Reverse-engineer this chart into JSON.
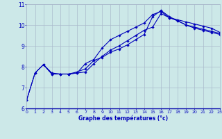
{
  "xlabel": "Graphe des températures (°c)",
  "background_color": "#cce8e8",
  "grid_color": "#aabbcc",
  "line_color": "#0000bb",
  "xlim": [
    0,
    23
  ],
  "ylim": [
    6,
    11
  ],
  "xticks": [
    0,
    1,
    2,
    3,
    4,
    5,
    6,
    7,
    8,
    9,
    10,
    11,
    12,
    13,
    14,
    15,
    16,
    17,
    18,
    19,
    20,
    21,
    22,
    23
  ],
  "yticks": [
    6,
    7,
    8,
    9,
    10,
    11
  ],
  "line1_x": [
    0,
    1,
    2,
    3,
    4,
    5,
    6,
    7,
    8,
    9,
    10,
    11,
    12,
    13,
    14,
    15,
    16,
    17,
    18,
    19,
    20,
    21,
    22,
    23
  ],
  "line1_y": [
    6.4,
    7.7,
    8.1,
    7.7,
    7.65,
    7.65,
    7.75,
    7.9,
    8.3,
    8.45,
    8.7,
    8.85,
    9.05,
    9.3,
    9.55,
    10.4,
    10.7,
    10.4,
    10.2,
    10.0,
    9.9,
    9.8,
    9.7,
    9.6
  ],
  "line2_x": [
    0,
    1,
    2,
    3,
    4,
    5,
    6,
    7,
    8,
    9,
    10,
    11,
    12,
    13,
    14,
    15,
    16,
    17,
    18,
    19,
    20,
    21,
    22,
    23
  ],
  "line2_y": [
    6.4,
    7.7,
    8.1,
    7.65,
    7.65,
    7.65,
    7.7,
    8.15,
    8.35,
    8.9,
    9.3,
    9.5,
    9.7,
    9.9,
    10.1,
    10.5,
    10.65,
    10.35,
    10.2,
    10.0,
    9.85,
    9.75,
    9.65,
    9.55
  ],
  "line3_x": [
    2,
    3,
    4,
    5,
    6,
    7,
    8,
    9,
    10,
    11,
    12,
    13,
    14,
    15,
    16,
    17,
    18,
    19,
    20,
    21,
    22,
    23
  ],
  "line3_y": [
    8.1,
    7.65,
    7.65,
    7.65,
    7.7,
    7.75,
    8.15,
    8.5,
    8.8,
    9.0,
    9.25,
    9.5,
    9.75,
    9.9,
    10.55,
    10.35,
    10.25,
    10.15,
    10.05,
    9.95,
    9.85,
    9.65
  ]
}
